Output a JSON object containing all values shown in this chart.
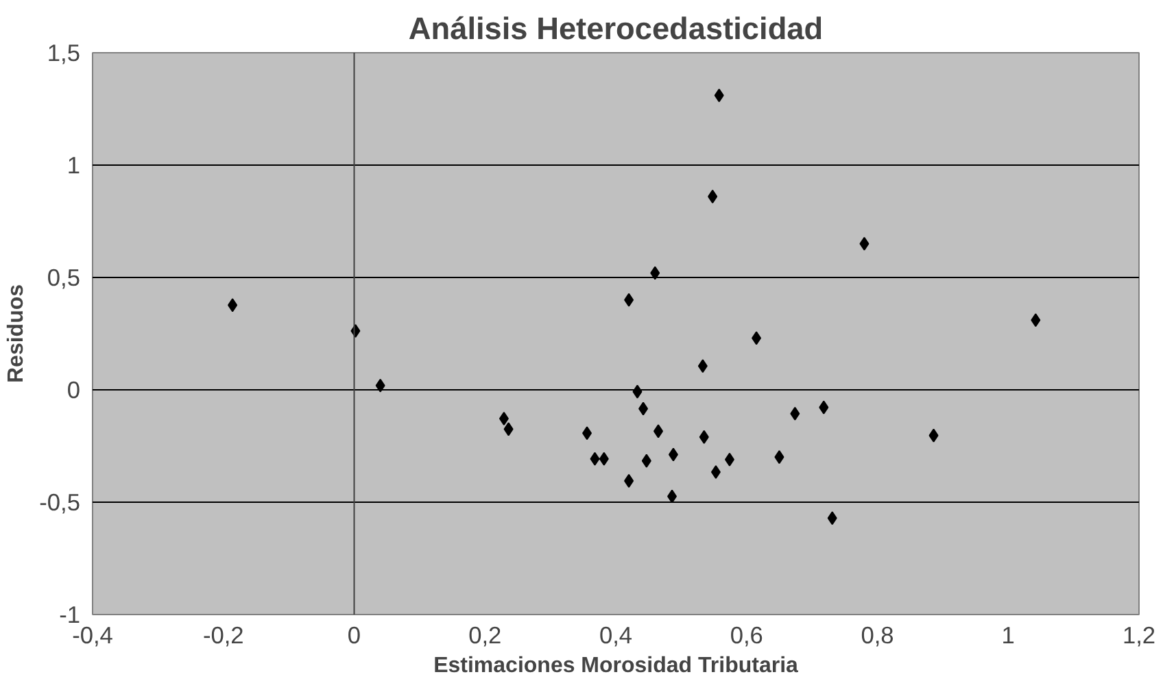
{
  "chart_data": {
    "type": "scatter",
    "title": "Análisis Heterocedasticidad",
    "xlabel": "Estimaciones Morosidad Tributaria",
    "ylabel": "Residuos",
    "xlim": [
      -0.4,
      1.2
    ],
    "ylim": [
      -1,
      1.5
    ],
    "xticks": [
      {
        "value": -0.4,
        "label": "-0,4"
      },
      {
        "value": -0.2,
        "label": "-0,2"
      },
      0,
      {
        "value": 0.2,
        "label": "0,2"
      },
      {
        "value": 0.4,
        "label": "0,4"
      },
      {
        "value": 0.6,
        "label": "0,6"
      },
      {
        "value": 0.8,
        "label": "0,8"
      },
      1,
      {
        "value": 1.2,
        "label": "1,2"
      }
    ],
    "yticks": [
      -1,
      {
        "value": -0.5,
        "label": "-0,5"
      },
      0,
      {
        "value": 0.5,
        "label": "0,5"
      },
      1,
      {
        "value": 1.5,
        "label": "1,5"
      }
    ],
    "grid": "y",
    "ref_lines": [
      {
        "axis": "x",
        "value": 0,
        "color": "#404040"
      }
    ],
    "marker": "diamond",
    "series": [
      {
        "color": "#000000",
        "x": [
          -0.186,
          0.002,
          0.04,
          0.229,
          0.236,
          0.356,
          0.368,
          0.382,
          0.42,
          0.433,
          0.442,
          0.447,
          0.465,
          0.488,
          0.486,
          0.533,
          0.535,
          0.553,
          0.574,
          0.65,
          0.674,
          0.718,
          0.731,
          0.886,
          1.042,
          0.558,
          0.548,
          0.78,
          0.46,
          0.42,
          0.615
        ],
        "values": [
          0.377,
          0.262,
          0.019,
          -0.128,
          -0.175,
          -0.193,
          -0.307,
          -0.307,
          -0.405,
          -0.008,
          -0.084,
          -0.316,
          -0.184,
          -0.288,
          -0.474,
          0.106,
          -0.21,
          -0.366,
          -0.31,
          -0.299,
          -0.106,
          -0.078,
          -0.571,
          -0.203,
          0.31,
          1.31,
          0.86,
          0.65,
          0.52,
          0.4,
          0.23
        ]
      }
    ]
  }
}
